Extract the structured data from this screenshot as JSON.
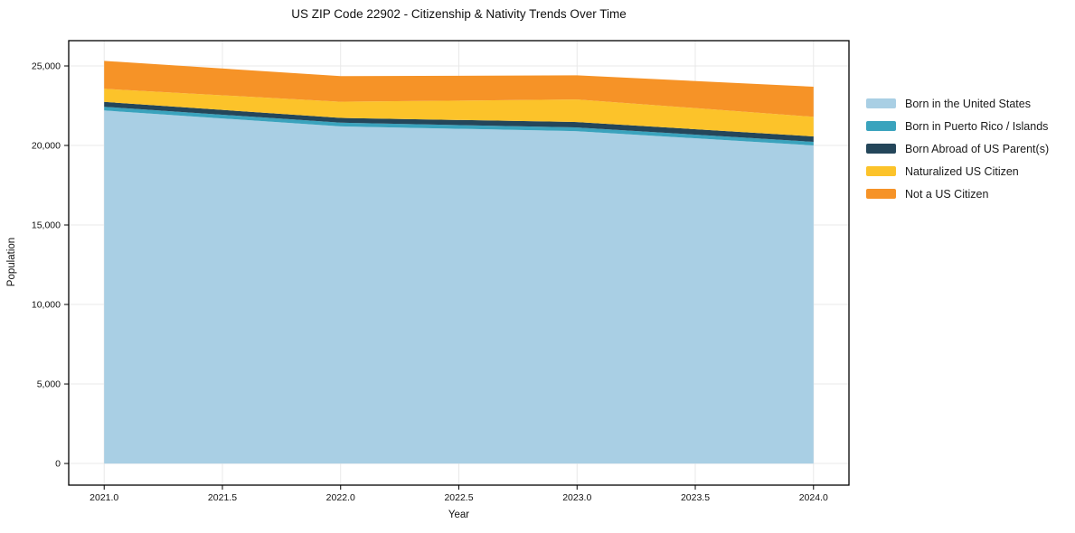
{
  "chart_data": {
    "type": "area",
    "stacked": true,
    "title": "US ZIP Code 22902 - Citizenship & Nativity Trends Over Time",
    "xlabel": "Year",
    "ylabel": "Population",
    "x": [
      2021,
      2022,
      2023,
      2024
    ],
    "series": [
      {
        "name": "Born in the United States",
        "color": "#a9cfe4",
        "values": [
          22200,
          21200,
          20900,
          20000
        ]
      },
      {
        "name": "Born in Puerto Rico / Islands",
        "color": "#3aa3bd",
        "values": [
          230,
          230,
          230,
          230
        ]
      },
      {
        "name": "Born Abroad of US Parent(s)",
        "color": "#24465a",
        "values": [
          310,
          300,
          340,
          340
        ]
      },
      {
        "name": "Naturalized US Citizen",
        "color": "#fcc32a",
        "values": [
          820,
          1020,
          1420,
          1230
        ]
      },
      {
        "name": "Not a US Citizen",
        "color": "#f69327",
        "values": [
          1760,
          1610,
          1520,
          1890
        ]
      }
    ],
    "xlim": [
      2020.85,
      2024.15
    ],
    "ylim": [
      -1360,
      26590
    ],
    "x_ticks": [
      2021.0,
      2021.5,
      2022.0,
      2022.5,
      2023.0,
      2023.5,
      2024.0
    ],
    "x_tick_labels": [
      "2021.0",
      "2021.5",
      "2022.0",
      "2022.5",
      "2023.0",
      "2023.5",
      "2024.0"
    ],
    "y_ticks": [
      0,
      5000,
      10000,
      15000,
      20000,
      25000
    ],
    "y_tick_labels": [
      "0",
      "5,000",
      "10,000",
      "15,000",
      "20,000",
      "25,000"
    ],
    "grid": true,
    "grid_color": "#e9e9e9",
    "spine_color": "#000000",
    "legend_position": "right-outside"
  }
}
